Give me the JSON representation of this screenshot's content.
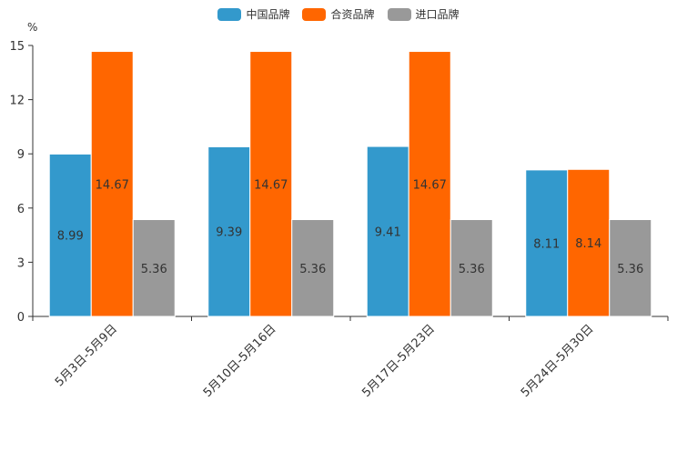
{
  "chart_data": {
    "type": "bar",
    "title": "",
    "ylabel": "%",
    "xlabel": "",
    "ylim": [
      0,
      15
    ],
    "yticks": [
      0,
      3,
      6,
      9,
      12,
      15
    ],
    "categories": [
      "5月3日-5月9日",
      "5月10日-5月16日",
      "5月17日-5月23日",
      "5月24日-5月30日"
    ],
    "series": [
      {
        "name": "中国品牌",
        "color": "#3399cc",
        "values": [
          8.99,
          9.39,
          9.41,
          8.11
        ]
      },
      {
        "name": "合资品牌",
        "color": "#ff6600",
        "values": [
          14.67,
          14.67,
          14.67,
          8.14
        ]
      },
      {
        "name": "进口品牌",
        "color": "#999999",
        "values": [
          5.36,
          5.36,
          5.36,
          5.36
        ]
      }
    ],
    "legend_position": "top-center"
  }
}
